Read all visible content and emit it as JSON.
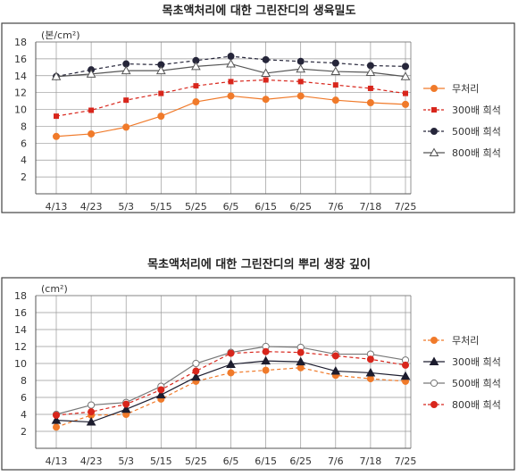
{
  "chart_data": [
    {
      "type": "line",
      "title": "목초액처리에 대한 그린잔디의 생육밀도",
      "ylabel": "(본/cm²)",
      "xlabel": "",
      "categories": [
        "4/13",
        "4/23",
        "5/3",
        "5/15",
        "5/25",
        "6/5",
        "6/15",
        "6/25",
        "7/6",
        "7/18",
        "7/25"
      ],
      "yticks": [
        2,
        4,
        6,
        8,
        10,
        12,
        14,
        16,
        18
      ],
      "ylim": [
        0,
        18
      ],
      "grid": true,
      "legend_position": "right",
      "series": [
        {
          "name": "무처리",
          "color": "#f07a2a",
          "marker": "circle-filled",
          "dash": "solid",
          "values": [
            6.8,
            7.1,
            7.9,
            9.2,
            10.9,
            11.6,
            11.2,
            11.6,
            11.1,
            10.8,
            10.6
          ]
        },
        {
          "name": "300배 희석",
          "color": "#d8261c",
          "marker": "square-filled",
          "dash": "dashed",
          "values": [
            9.2,
            9.9,
            11.1,
            11.9,
            12.8,
            13.3,
            13.5,
            13.3,
            12.9,
            12.5,
            11.9
          ]
        },
        {
          "name": "500배 희석",
          "color": "#26263a",
          "marker": "circle-filled",
          "dash": "dashed",
          "values": [
            13.9,
            14.7,
            15.4,
            15.3,
            15.8,
            16.3,
            15.9,
            15.7,
            15.5,
            15.2,
            15.1
          ]
        },
        {
          "name": "800배 희석",
          "color": "#555555",
          "marker": "triangle-open",
          "dash": "solid",
          "values": [
            13.9,
            14.2,
            14.6,
            14.6,
            15.1,
            15.4,
            14.3,
            14.8,
            14.5,
            14.4,
            13.9
          ]
        }
      ]
    },
    {
      "type": "line",
      "title": "목초액처리에 대한 그린잔디의 뿌리 생장 깊이",
      "ylabel": "(cm²)",
      "xlabel": "",
      "categories": [
        "4/13",
        "4/23",
        "5/3",
        "5/15",
        "5/25",
        "6/5",
        "6/15",
        "6/25",
        "7/6",
        "7/18",
        "7/25"
      ],
      "yticks": [
        2,
        4,
        6,
        8,
        10,
        12,
        14,
        16,
        18
      ],
      "ylim": [
        0,
        18
      ],
      "grid": true,
      "legend_position": "right",
      "series": [
        {
          "name": "무처리",
          "color": "#f07a2a",
          "marker": "circle-filled",
          "dash": "dashed",
          "values": [
            2.5,
            3.9,
            4.0,
            5.8,
            7.9,
            8.9,
            9.2,
            9.5,
            8.6,
            8.2,
            7.9
          ]
        },
        {
          "name": "300배 희석",
          "color": "#1c1c2e",
          "marker": "triangle-filled",
          "dash": "solid",
          "values": [
            3.3,
            3.1,
            4.6,
            6.3,
            8.4,
            9.9,
            10.3,
            10.2,
            9.1,
            8.9,
            8.5
          ]
        },
        {
          "name": "500배 희석",
          "color": "#777777",
          "marker": "circle-open",
          "dash": "solid",
          "values": [
            4.0,
            5.1,
            5.4,
            7.3,
            10.0,
            11.3,
            12.0,
            11.9,
            11.1,
            11.1,
            10.4
          ]
        },
        {
          "name": "800배 희석",
          "color": "#d8261c",
          "marker": "circle-filled",
          "dash": "dashed",
          "values": [
            3.9,
            4.3,
            5.2,
            6.9,
            9.1,
            11.2,
            11.4,
            11.3,
            10.9,
            10.5,
            9.8
          ]
        }
      ]
    }
  ]
}
